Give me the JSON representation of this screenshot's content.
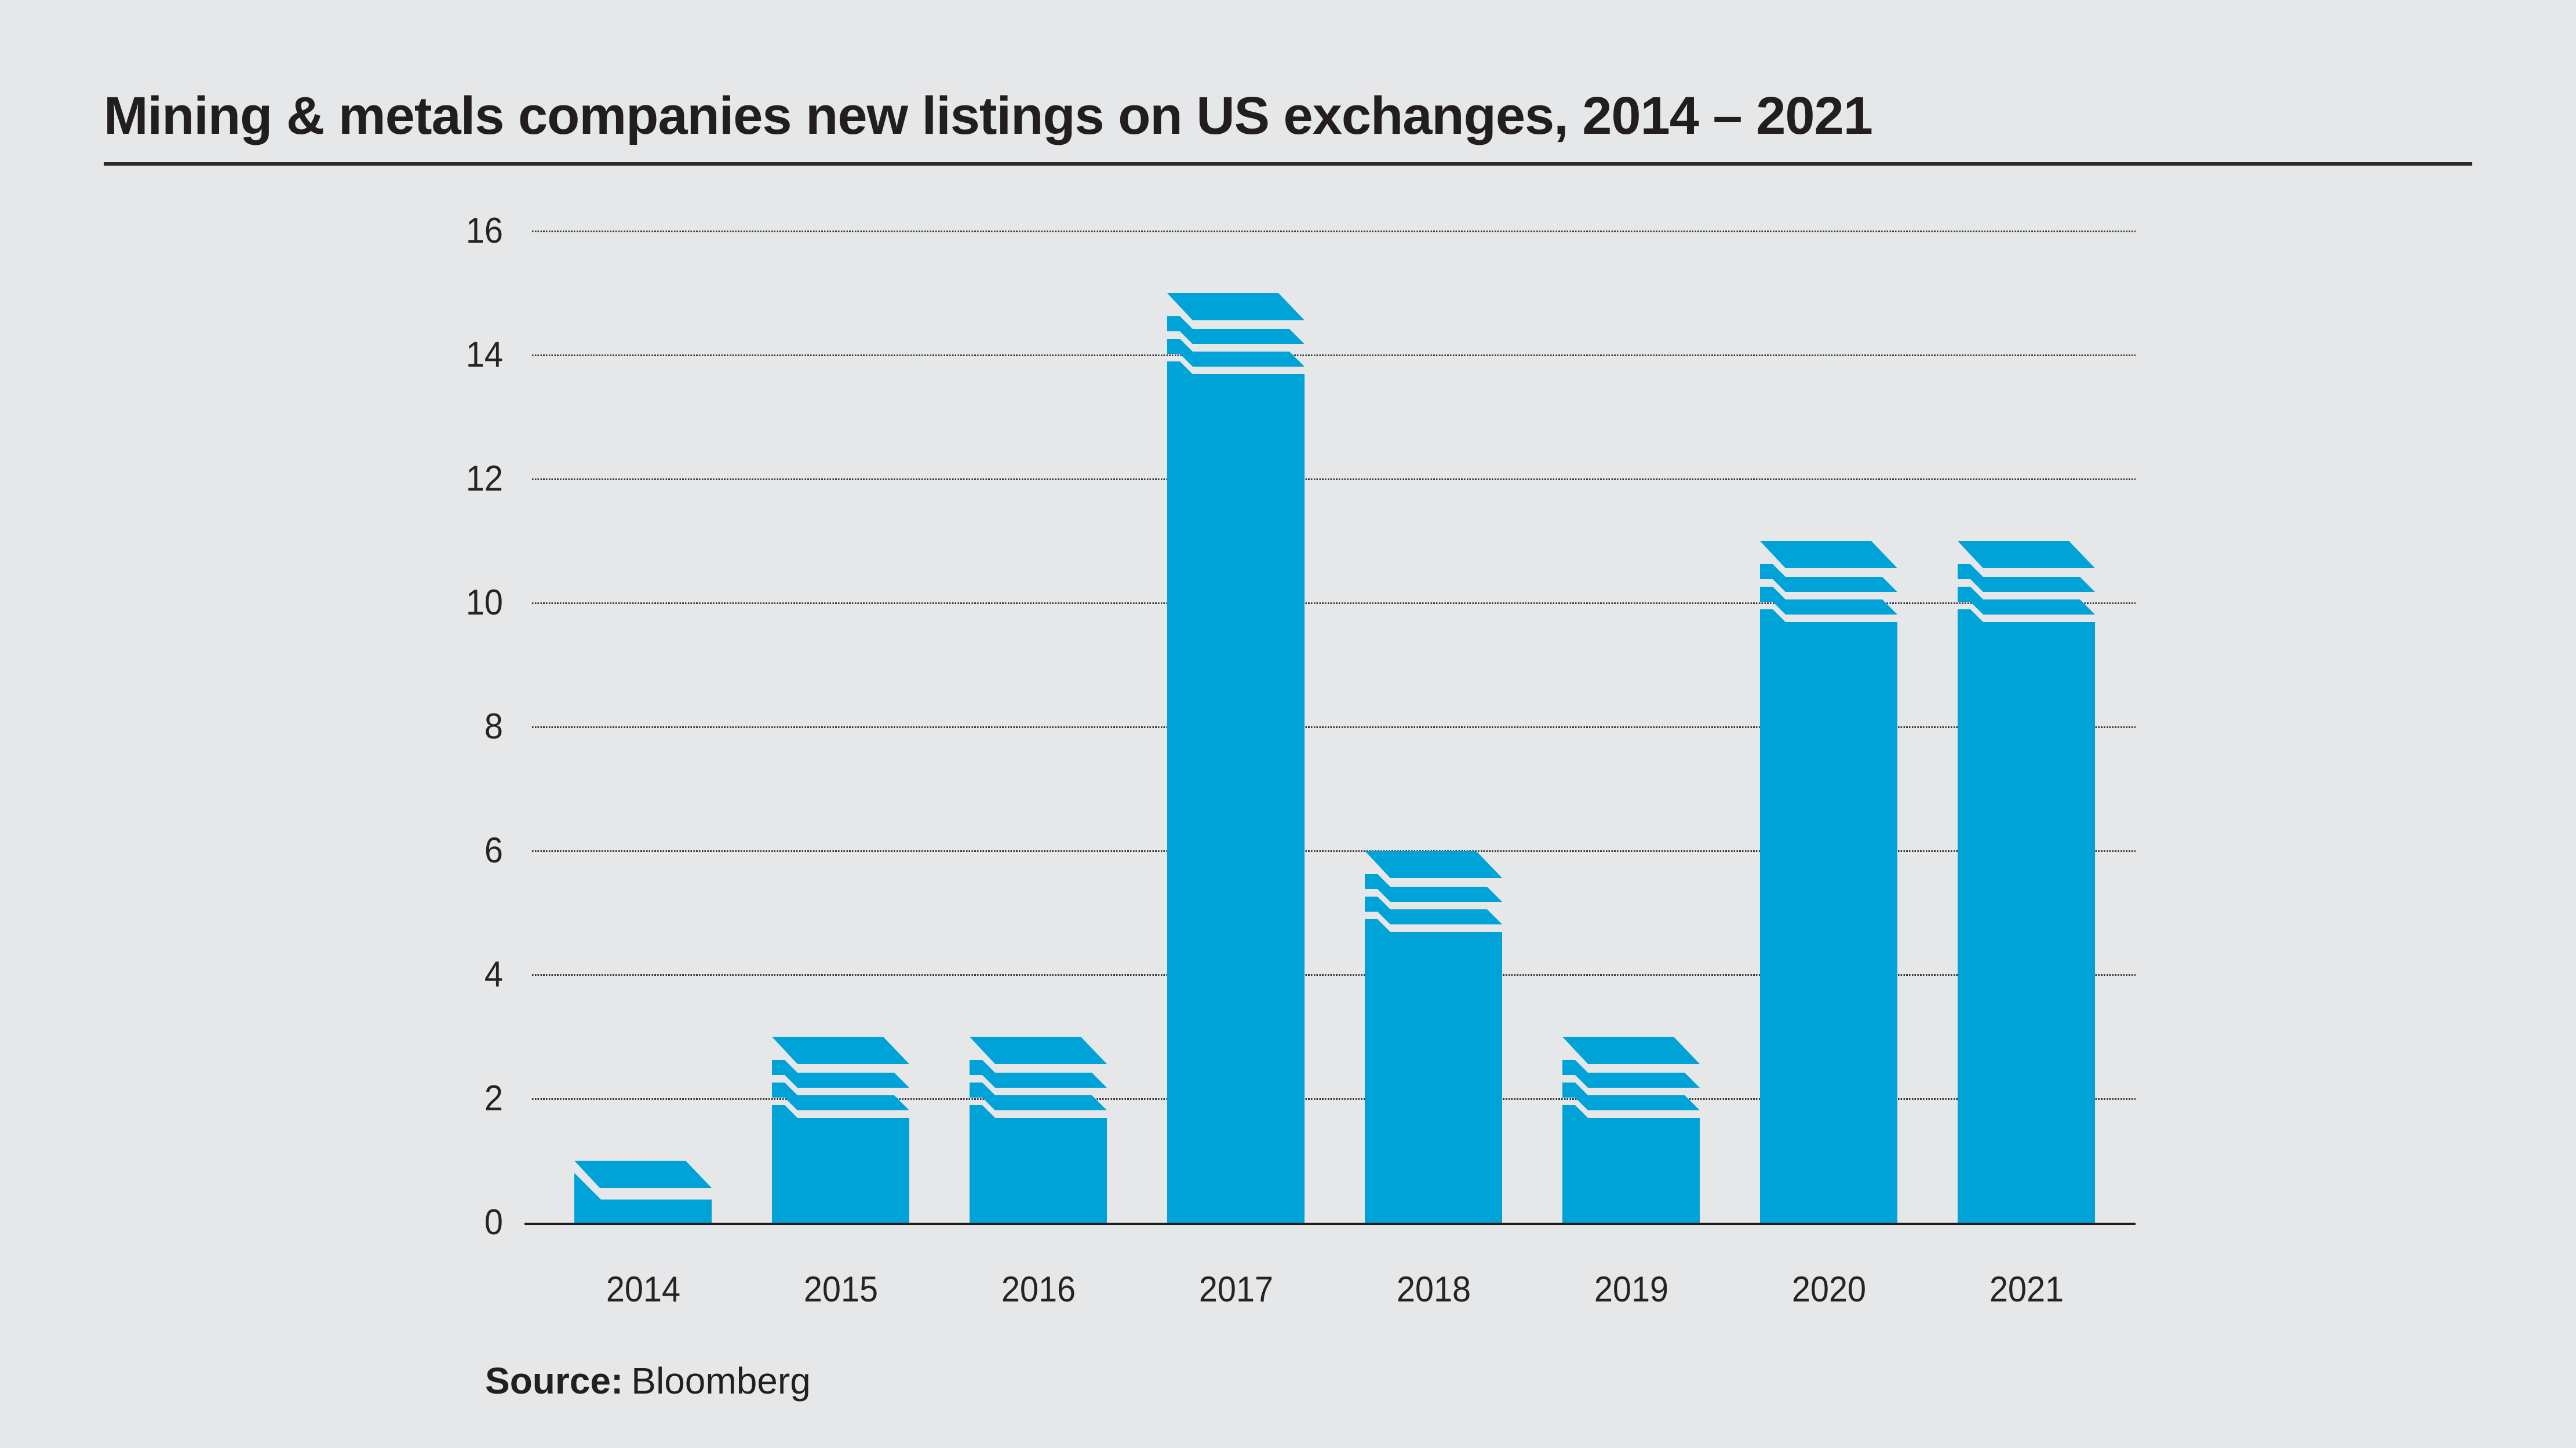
{
  "page_background": "#e6e7e8",
  "title": "Mining & metals companies new listings on US exchanges, 2014 – 2021",
  "source": {
    "label": "Source:",
    "value": "Bloomberg"
  },
  "chart_data": {
    "type": "bar",
    "title": "Mining & metals companies new listings on US exchanges, 2014 – 2021",
    "categories": [
      "2014",
      "2015",
      "2016",
      "2017",
      "2018",
      "2019",
      "2020",
      "2021"
    ],
    "values": [
      1,
      3,
      3,
      15,
      6,
      3,
      11,
      11
    ],
    "xlabel": "",
    "ylabel": "",
    "ylim": [
      0,
      16
    ],
    "yticks": [
      0,
      2,
      4,
      6,
      8,
      10,
      12,
      14,
      16
    ],
    "grid": "horizontal-dotted",
    "legend": "none",
    "bar_motif": "solid bar with layered cap: top parallelogram sheet and two thin slices separated by 45-degree white cuts",
    "colors": {
      "bar": "#00a3d7",
      "background": "#e6e7e8",
      "grid": "#3a3a3a",
      "axis": "#1c1c1c",
      "tick_text": "#272324",
      "title_text": "#221e1f",
      "rule": "#2b2a2a"
    }
  }
}
